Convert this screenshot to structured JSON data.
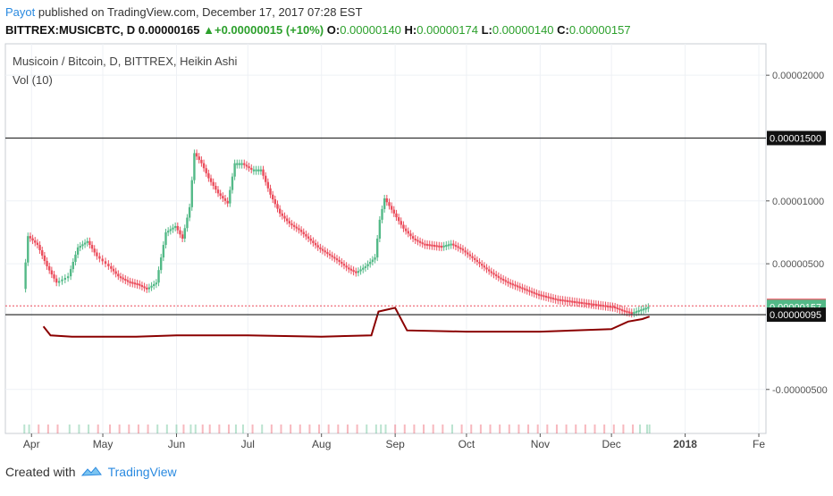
{
  "header": {
    "author": "Payot",
    "published_text": " published on TradingView.com, December 17, 2017 07:28 EST"
  },
  "ticker": {
    "symbol": "BITTREX:MUSICBTC, D",
    "last": "0.00000165",
    "change": "+0.00000015 (+10%)",
    "o_label": "O:",
    "o": "0.00000140",
    "h_label": "H:",
    "h": "0.00000174",
    "l_label": "L:",
    "l": "0.00000140",
    "c_label": "C:",
    "c": "0.00000157"
  },
  "legend": {
    "title": "Musicoin / Bitcoin, D, BITTREX, Heikin Ashi",
    "vol": "Vol (10)"
  },
  "footer": {
    "created_with": "Created with",
    "brand": "TradingView"
  },
  "colors": {
    "up": "#53b987",
    "down": "#eb4d5c",
    "vol_ma": "#8b0000",
    "grid": "#eef1f5"
  },
  "chart_data": {
    "type": "candlestick",
    "title": "Musicoin / Bitcoin, D, BITTREX, Heikin Ashi",
    "y_ticks": [
      "0.00002000",
      "0.00001000",
      "0.00000500",
      "-0.00000500"
    ],
    "y_tick_values": [
      2e-05,
      1e-05,
      5e-06,
      -5e-06
    ],
    "ylim": [
      -8.5e-06,
      2.25e-05
    ],
    "x_ticks": [
      "Apr",
      "May",
      "Jun",
      "Jul",
      "Aug",
      "Sep",
      "Oct",
      "Nov",
      "Dec",
      "2018",
      "Fe"
    ],
    "x_tick_dates": [
      "2017-04-01",
      "2017-05-01",
      "2017-06-01",
      "2017-07-01",
      "2017-08-01",
      "2017-09-01",
      "2017-10-01",
      "2017-11-01",
      "2017-12-01",
      "2018-01-01",
      "2018-02-01"
    ],
    "xlim": [
      "2017-03-21",
      "2018-02-04"
    ],
    "price_labels": [
      {
        "text": "0.00001500",
        "value": 1.5e-05,
        "style": "line"
      },
      {
        "text": "0.00000165",
        "value": 1.65e-06,
        "style": "red"
      },
      {
        "text": "0.00000157",
        "value": 1.57e-06,
        "style": "green"
      },
      {
        "text": "0.00000095",
        "value": 9.5e-07,
        "style": "line"
      }
    ],
    "price_series": [
      {
        "date": "2017-03-29",
        "close": 3e-06
      },
      {
        "date": "2017-03-31",
        "close": 7.2e-06
      },
      {
        "date": "2017-04-04",
        "close": 6.5e-06
      },
      {
        "date": "2017-04-08",
        "close": 4.8e-06
      },
      {
        "date": "2017-04-12",
        "close": 3.5e-06
      },
      {
        "date": "2017-04-17",
        "close": 4e-06
      },
      {
        "date": "2017-04-21",
        "close": 6.3e-06
      },
      {
        "date": "2017-04-25",
        "close": 6.8e-06
      },
      {
        "date": "2017-04-29",
        "close": 5.6e-06
      },
      {
        "date": "2017-05-04",
        "close": 4.8e-06
      },
      {
        "date": "2017-05-08",
        "close": 4e-06
      },
      {
        "date": "2017-05-12",
        "close": 3.6e-06
      },
      {
        "date": "2017-05-16",
        "close": 3.4e-06
      },
      {
        "date": "2017-05-20",
        "close": 3e-06
      },
      {
        "date": "2017-05-24",
        "close": 3.5e-06
      },
      {
        "date": "2017-05-28",
        "close": 7.5e-06
      },
      {
        "date": "2017-06-01",
        "close": 8e-06
      },
      {
        "date": "2017-06-04",
        "close": 7e-06
      },
      {
        "date": "2017-06-07",
        "close": 9.5e-06
      },
      {
        "date": "2017-06-09",
        "close": 1.38e-05
      },
      {
        "date": "2017-06-12",
        "close": 1.3e-05
      },
      {
        "date": "2017-06-15",
        "close": 1.18e-05
      },
      {
        "date": "2017-06-19",
        "close": 1.06e-05
      },
      {
        "date": "2017-06-23",
        "close": 9.8e-06
      },
      {
        "date": "2017-06-26",
        "close": 1.3e-05
      },
      {
        "date": "2017-06-29",
        "close": 1.3e-05
      },
      {
        "date": "2017-07-03",
        "close": 1.25e-05
      },
      {
        "date": "2017-07-07",
        "close": 1.25e-05
      },
      {
        "date": "2017-07-11",
        "close": 1.05e-05
      },
      {
        "date": "2017-07-15",
        "close": 9e-06
      },
      {
        "date": "2017-07-19",
        "close": 8.2e-06
      },
      {
        "date": "2017-07-23",
        "close": 7.7e-06
      },
      {
        "date": "2017-07-27",
        "close": 7e-06
      },
      {
        "date": "2017-07-31",
        "close": 6.3e-06
      },
      {
        "date": "2017-08-04",
        "close": 5.8e-06
      },
      {
        "date": "2017-08-08",
        "close": 5.3e-06
      },
      {
        "date": "2017-08-12",
        "close": 4.7e-06
      },
      {
        "date": "2017-08-16",
        "close": 4.3e-06
      },
      {
        "date": "2017-08-20",
        "close": 4.8e-06
      },
      {
        "date": "2017-08-24",
        "close": 5.5e-06
      },
      {
        "date": "2017-08-26",
        "close": 8.5e-06
      },
      {
        "date": "2017-08-28",
        "close": 1.02e-05
      },
      {
        "date": "2017-09-01",
        "close": 9e-06
      },
      {
        "date": "2017-09-05",
        "close": 7.8e-06
      },
      {
        "date": "2017-09-09",
        "close": 7e-06
      },
      {
        "date": "2017-09-13",
        "close": 6.6e-06
      },
      {
        "date": "2017-09-17",
        "close": 6.5e-06
      },
      {
        "date": "2017-09-21",
        "close": 6.4e-06
      },
      {
        "date": "2017-09-25",
        "close": 6.6e-06
      },
      {
        "date": "2017-09-29",
        "close": 6.2e-06
      },
      {
        "date": "2017-10-03",
        "close": 5.6e-06
      },
      {
        "date": "2017-10-07",
        "close": 5e-06
      },
      {
        "date": "2017-10-11",
        "close": 4.4e-06
      },
      {
        "date": "2017-10-15",
        "close": 3.9e-06
      },
      {
        "date": "2017-10-19",
        "close": 3.5e-06
      },
      {
        "date": "2017-10-23",
        "close": 3.2e-06
      },
      {
        "date": "2017-10-27",
        "close": 2.9e-06
      },
      {
        "date": "2017-10-31",
        "close": 2.6e-06
      },
      {
        "date": "2017-11-04",
        "close": 2.4e-06
      },
      {
        "date": "2017-11-08",
        "close": 2.2e-06
      },
      {
        "date": "2017-11-12",
        "close": 2.1e-06
      },
      {
        "date": "2017-11-16",
        "close": 2e-06
      },
      {
        "date": "2017-11-20",
        "close": 1.9e-06
      },
      {
        "date": "2017-11-24",
        "close": 1.8e-06
      },
      {
        "date": "2017-11-28",
        "close": 1.7e-06
      },
      {
        "date": "2017-12-02",
        "close": 1.6e-06
      },
      {
        "date": "2017-12-06",
        "close": 1.3e-06
      },
      {
        "date": "2017-12-10",
        "close": 1.1e-06
      },
      {
        "date": "2017-12-13",
        "close": 1.3e-06
      },
      {
        "date": "2017-12-16",
        "close": 1.5e-06
      },
      {
        "date": "2017-12-17",
        "close": 1.57e-06
      }
    ],
    "volume_ma_series": [
      {
        "date": "2017-04-06",
        "value": 1e-08
      },
      {
        "date": "2017-04-09",
        "value": -7e-07
      },
      {
        "date": "2017-04-18",
        "value": -8e-07
      },
      {
        "date": "2017-05-15",
        "value": -8e-07
      },
      {
        "date": "2017-06-01",
        "value": -7e-07
      },
      {
        "date": "2017-07-01",
        "value": -7e-07
      },
      {
        "date": "2017-08-01",
        "value": -8e-07
      },
      {
        "date": "2017-08-22",
        "value": -7e-07
      },
      {
        "date": "2017-08-25",
        "value": 1.2e-06
      },
      {
        "date": "2017-09-01",
        "value": 1.5e-06
      },
      {
        "date": "2017-09-06",
        "value": -3e-07
      },
      {
        "date": "2017-10-01",
        "value": -4e-07
      },
      {
        "date": "2017-11-01",
        "value": -4e-07
      },
      {
        "date": "2017-12-01",
        "value": -2e-07
      },
      {
        "date": "2017-12-08",
        "value": 4e-07
      },
      {
        "date": "2017-12-14",
        "value": 6e-07
      },
      {
        "date": "2017-12-17",
        "value": 8e-07
      }
    ]
  }
}
